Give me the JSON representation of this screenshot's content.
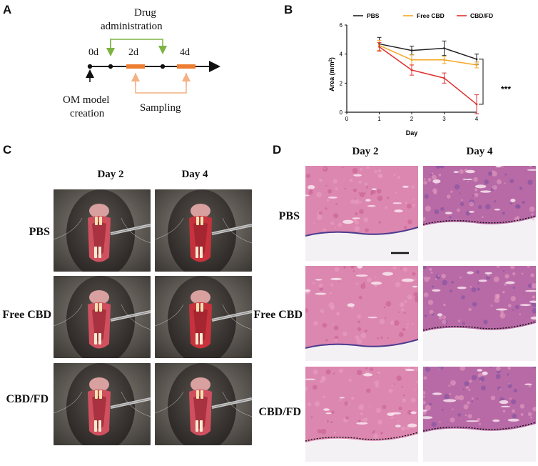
{
  "panels": {
    "a": {
      "letter": "A"
    },
    "b": {
      "letter": "B"
    },
    "c": {
      "letter": "C"
    },
    "d": {
      "letter": "D"
    }
  },
  "timeline": {
    "drug_label_line1": "Drug",
    "drug_label_line2": "administration",
    "ticks": [
      "0d",
      "2d",
      "4d"
    ],
    "om_line1": "OM model",
    "om_line2": "creation",
    "sampling": "Sampling",
    "colors": {
      "drug_arrow": "#7cb342",
      "sampling_arrow": "#f4b183",
      "sample_bar": "#ed7d31"
    }
  },
  "chart_data": {
    "type": "line",
    "x": [
      1,
      2,
      3,
      4
    ],
    "xlim": [
      0,
      4
    ],
    "ylim": [
      0,
      6
    ],
    "xticks": [
      "0",
      "1",
      "2",
      "3",
      "4"
    ],
    "yticks": [
      "0",
      "2",
      "4",
      "6"
    ],
    "xlabel": "Day",
    "ylabel_main": "Area (mm",
    "ylabel_sup": "2",
    "ylabel_end": ")",
    "legend_position": "top",
    "significance": "***",
    "series": [
      {
        "name": "PBS",
        "color": "#222222",
        "values": [
          4.7,
          4.25,
          4.4,
          3.65
        ],
        "errors": [
          0.45,
          0.3,
          0.5,
          0.35
        ]
      },
      {
        "name": "Free CBD",
        "color": "#f5a623",
        "values": [
          4.6,
          3.6,
          3.6,
          3.25
        ],
        "errors": [
          0.35,
          0.35,
          0.25,
          0.2
        ]
      },
      {
        "name": "CBD/FD",
        "color": "#e03131",
        "values": [
          4.5,
          2.9,
          2.35,
          0.55
        ],
        "errors": [
          0.3,
          0.35,
          0.35,
          0.65
        ]
      }
    ]
  },
  "panel_c": {
    "col_labels": [
      "Day 2",
      "Day 4"
    ],
    "row_labels": [
      "PBS",
      "Free CBD",
      "CBD/FD"
    ]
  },
  "panel_d": {
    "col_labels": [
      "Day 2",
      "Day 4"
    ],
    "row_labels": [
      "PBS",
      "Free CBD",
      "CBD/FD"
    ]
  }
}
